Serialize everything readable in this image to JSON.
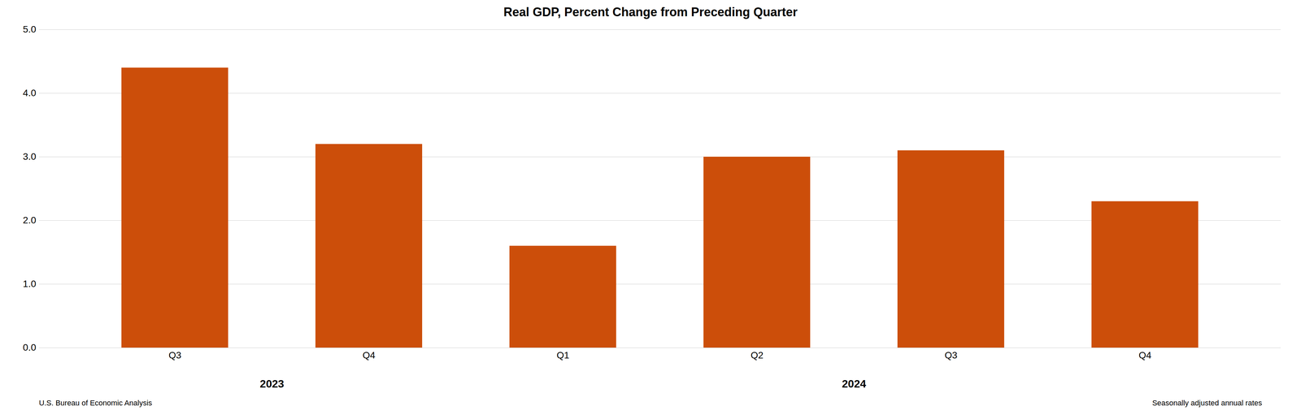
{
  "chart_data": {
    "type": "bar",
    "title": "Real GDP, Percent Change from Preceding Quarter",
    "categories": [
      "Q3",
      "Q4",
      "Q1",
      "Q2",
      "Q3",
      "Q4"
    ],
    "values": [
      4.4,
      3.2,
      1.6,
      3.0,
      3.1,
      2.3
    ],
    "color": "#CC4E0A",
    "ylim": [
      0.0,
      5.0
    ],
    "yticks": [
      {
        "value": 0.0,
        "label": "0.0"
      },
      {
        "value": 1.0,
        "label": "1.0"
      },
      {
        "value": 2.0,
        "label": "2.0"
      },
      {
        "value": 3.0,
        "label": "3.0"
      },
      {
        "value": 4.0,
        "label": "4.0"
      },
      {
        "value": 5.0,
        "label": "5.0"
      }
    ],
    "grid": true,
    "annotations": [
      {
        "text": "2023",
        "x": 0.5
      },
      {
        "text": "2024",
        "x": 3.5
      },
      {
        "text": "U.S. Bureau of Economic Analysis"
      },
      {
        "text": "Seasonally adjusted annual rates"
      }
    ]
  }
}
